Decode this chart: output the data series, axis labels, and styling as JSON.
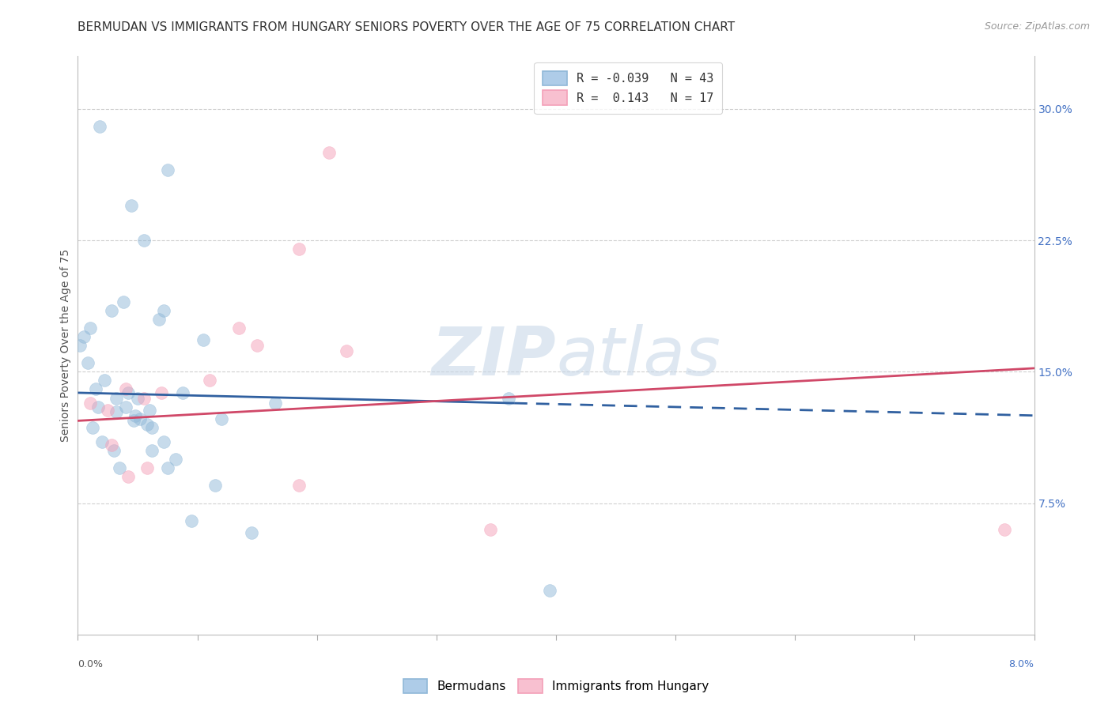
{
  "title": "BERMUDAN VS IMMIGRANTS FROM HUNGARY SENIORS POVERTY OVER THE AGE OF 75 CORRELATION CHART",
  "source": "Source: ZipAtlas.com",
  "ylabel": "Seniors Poverty Over the Age of 75",
  "right_yticks": [
    7.5,
    15.0,
    22.5,
    30.0
  ],
  "xlim": [
    0.0,
    8.0
  ],
  "ylim": [
    0.0,
    33.0
  ],
  "legend_entry1": "R = -0.039   N = 43",
  "legend_entry2": "R =  0.143   N = 17",
  "legend_labels": [
    "Bermudans",
    "Immigrants from Hungary"
  ],
  "blue_scatter_x": [
    0.18,
    0.45,
    0.75,
    0.55,
    0.38,
    0.28,
    0.1,
    0.05,
    0.02,
    0.08,
    0.22,
    0.15,
    0.32,
    0.4,
    0.5,
    0.6,
    1.05,
    1.65,
    0.48,
    0.58,
    0.68,
    0.72,
    0.88,
    1.2,
    0.12,
    0.2,
    0.3,
    0.35,
    0.42,
    0.52,
    0.62,
    0.72,
    0.82,
    0.75,
    0.95,
    1.15,
    1.45,
    0.17,
    0.32,
    0.47,
    0.62,
    3.6,
    3.95
  ],
  "blue_scatter_y": [
    29.0,
    24.5,
    26.5,
    22.5,
    19.0,
    18.5,
    17.5,
    17.0,
    16.5,
    15.5,
    14.5,
    14.0,
    13.5,
    13.0,
    13.5,
    12.8,
    16.8,
    13.2,
    12.5,
    12.0,
    18.0,
    18.5,
    13.8,
    12.3,
    11.8,
    11.0,
    10.5,
    9.5,
    13.8,
    12.3,
    11.8,
    11.0,
    10.0,
    9.5,
    6.5,
    8.5,
    5.8,
    13.0,
    12.7,
    12.2,
    10.5,
    13.5,
    2.5
  ],
  "pink_scatter_x": [
    0.1,
    0.25,
    0.4,
    0.55,
    0.7,
    1.1,
    1.85,
    2.25,
    1.5,
    0.28,
    0.42,
    0.58,
    1.85,
    1.35,
    3.45,
    2.1,
    7.75
  ],
  "pink_scatter_y": [
    13.2,
    12.8,
    14.0,
    13.5,
    13.8,
    14.5,
    22.0,
    16.2,
    16.5,
    10.8,
    9.0,
    9.5,
    8.5,
    17.5,
    6.0,
    27.5,
    6.0
  ],
  "blue_line_x0": 0.0,
  "blue_line_x_solid_end": 3.65,
  "blue_line_x1": 8.0,
  "blue_line_y0": 13.8,
  "blue_line_y1": 12.5,
  "pink_line_x0": 0.0,
  "pink_line_x1": 8.0,
  "pink_line_y0": 12.2,
  "pink_line_y1": 15.2,
  "dot_size": 130,
  "dot_alpha": 0.5,
  "blue_color": "#90b8d8",
  "pink_color": "#f4a0b8",
  "blue_line_color": "#3060a0",
  "pink_line_color": "#d04868",
  "blue_fill_color": "#aecce8",
  "pink_fill_color": "#f8c0d0",
  "watermark_zip": "ZIP",
  "watermark_atlas": "atlas",
  "background_color": "#ffffff",
  "grid_color": "#d0d0d0",
  "title_fontsize": 11,
  "right_axis_color": "#4472c4"
}
